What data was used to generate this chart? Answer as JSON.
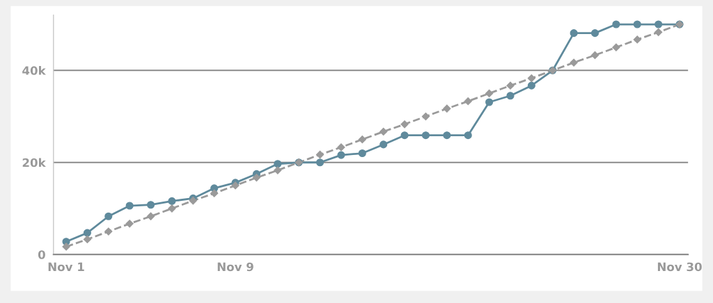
{
  "chart_data": {
    "type": "line",
    "categories": [
      "Nov 1",
      null,
      null,
      null,
      null,
      null,
      null,
      null,
      "Nov 9",
      null,
      null,
      null,
      null,
      null,
      null,
      null,
      null,
      null,
      null,
      null,
      null,
      null,
      null,
      null,
      null,
      null,
      null,
      null,
      null,
      "Nov 30"
    ],
    "series": [
      {
        "color": "#5f8a9c",
        "marker": "circle",
        "line_style": "solid",
        "values": [
          2800,
          4700,
          8300,
          10600,
          10800,
          11600,
          12200,
          14400,
          15600,
          17500,
          19700,
          20000,
          20000,
          21600,
          22000,
          23900,
          25900,
          25900,
          25900,
          25900,
          33100,
          34500,
          36700,
          40000,
          48100,
          48100,
          50000,
          50000,
          50000,
          50000
        ]
      },
      {
        "color": "#9a9a9a",
        "marker": "diamond",
        "line_style": "dashed",
        "values": [
          1700,
          3300,
          5000,
          6700,
          8300,
          10000,
          11700,
          13300,
          15000,
          16700,
          18300,
          20000,
          21700,
          23300,
          25000,
          26700,
          28300,
          30000,
          31700,
          33300,
          35000,
          36700,
          38300,
          40000,
          41700,
          43300,
          45000,
          46700,
          48300,
          50000
        ]
      }
    ],
    "yticks": [
      0,
      {
        "value": 20000,
        "label": "20k"
      },
      {
        "value": 40000,
        "label": "40k"
      }
    ],
    "ylim": [
      0,
      52000
    ],
    "grid": "y"
  }
}
